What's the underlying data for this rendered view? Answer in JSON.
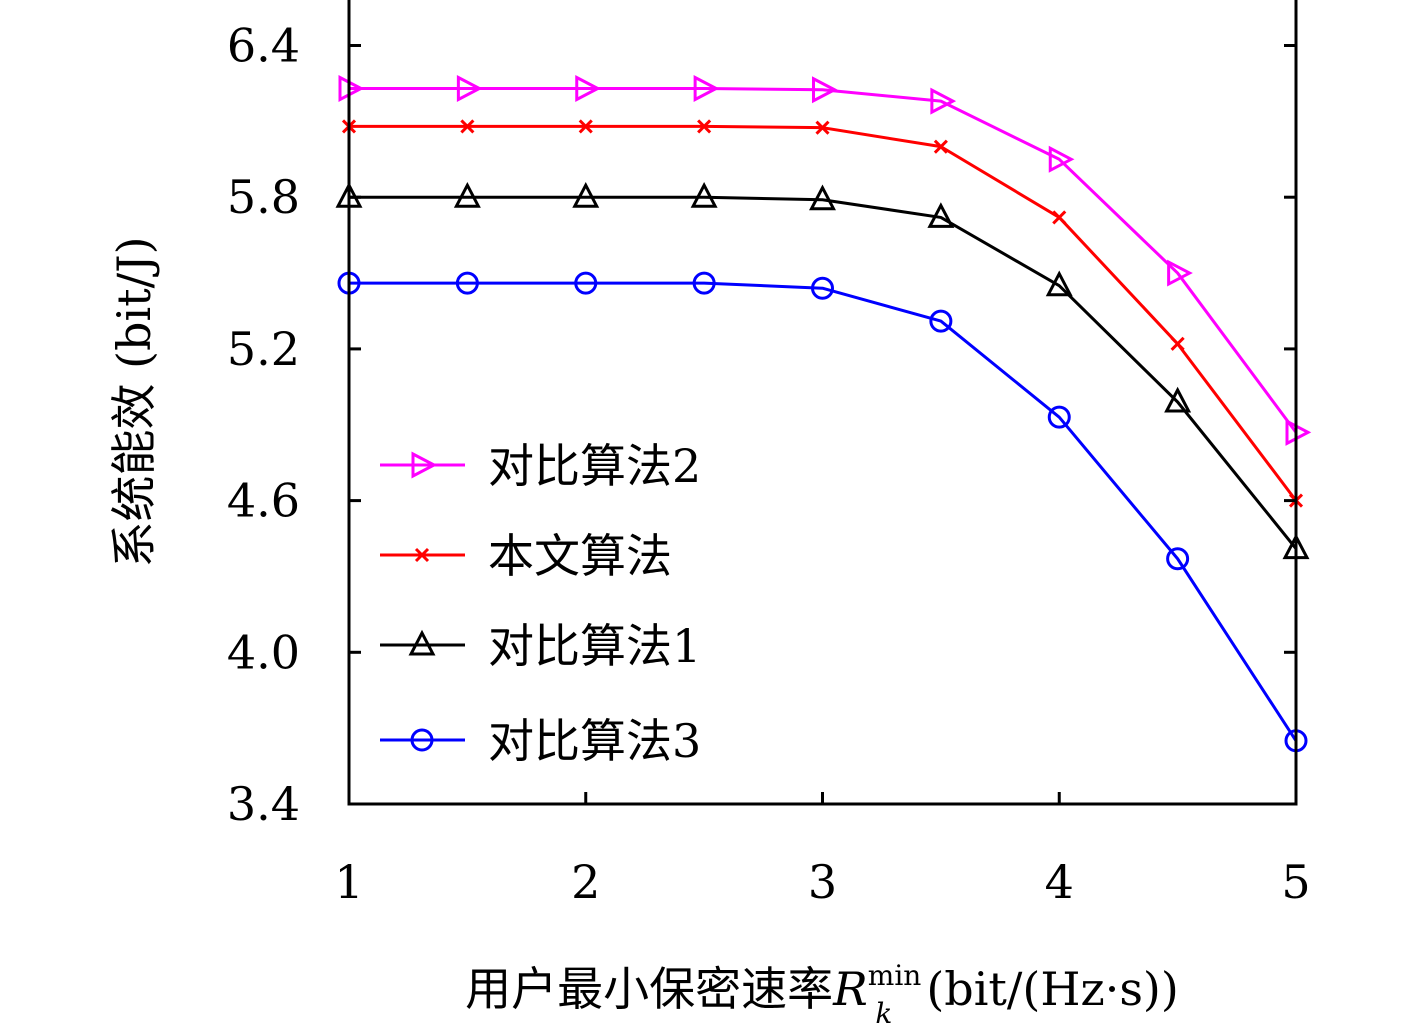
{
  "chart_data": {
    "type": "line",
    "xlabel": {
      "prefix": "用户最小保密速率",
      "symbol": "R",
      "subscript": "k",
      "superscript": "min",
      "suffix": "(bit/(Hz·s))"
    },
    "ylabel": "系统能效 (bit/J)",
    "x": [
      1,
      1.5,
      2,
      2.5,
      3,
      3.5,
      4,
      4.5,
      5
    ],
    "xticks": [
      1,
      2,
      3,
      4,
      5
    ],
    "xtick_labels": [
      "1",
      "2",
      "3",
      "4",
      "5"
    ],
    "yticks": [
      3.4,
      4.0,
      4.6,
      5.2,
      5.8,
      6.4
    ],
    "ytick_labels": [
      "3.4",
      "4.0",
      "4.6",
      "5.2",
      "5.8",
      "6.4"
    ],
    "xlim": [
      1,
      5
    ],
    "ylim": [
      3.4,
      6.58
    ],
    "grid": false,
    "legend_position": "lower-left",
    "series": [
      {
        "name": "对比算法2",
        "color": "#ff00ff",
        "marker": "triangle-right",
        "values": [
          6.23,
          6.23,
          6.23,
          6.23,
          6.225,
          6.18,
          5.95,
          5.5,
          4.87
        ]
      },
      {
        "name": "本文算法",
        "color": "#ff0000",
        "marker": "x",
        "values": [
          6.08,
          6.08,
          6.08,
          6.08,
          6.075,
          6.0,
          5.72,
          5.22,
          4.6
        ]
      },
      {
        "name": "对比算法1",
        "color": "#000000",
        "marker": "triangle-up",
        "values": [
          5.8,
          5.8,
          5.8,
          5.8,
          5.79,
          5.72,
          5.45,
          4.99,
          4.41
        ]
      },
      {
        "name": "对比算法3",
        "color": "#0000ff",
        "marker": "circle",
        "values": [
          5.46,
          5.46,
          5.46,
          5.46,
          5.44,
          5.31,
          4.93,
          4.37,
          3.65
        ]
      }
    ]
  }
}
